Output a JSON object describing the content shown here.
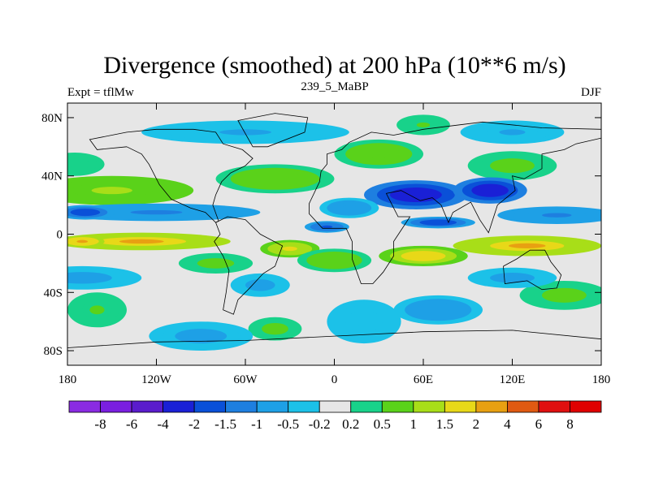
{
  "chart_data": {
    "type": "heatmap",
    "title": "Divergence (smoothed) at 200 hPa (10**6 m/s)",
    "left_label": "Expt = tflMw",
    "center_label": "239_5_MaBP",
    "right_label": "DJF",
    "xlim": [
      -180,
      180
    ],
    "ylim": [
      -90,
      90
    ],
    "x_ticks": [
      {
        "value": -180,
        "label": "180"
      },
      {
        "value": -120,
        "label": "120W"
      },
      {
        "value": -60,
        "label": "60W"
      },
      {
        "value": 0,
        "label": "0"
      },
      {
        "value": 60,
        "label": "60E"
      },
      {
        "value": 120,
        "label": "120E"
      },
      {
        "value": 180,
        "label": "180"
      }
    ],
    "y_ticks": [
      {
        "value": 80,
        "label": "80N"
      },
      {
        "value": 40,
        "label": "40N"
      },
      {
        "value": 0,
        "label": "0"
      },
      {
        "value": -40,
        "label": "40S"
      },
      {
        "value": -80,
        "label": "80S"
      }
    ],
    "levels": [
      "-8",
      "-6",
      "-4",
      "-2",
      "-1.5",
      "-1",
      "-0.5",
      "-0.2",
      "0.2",
      "0.5",
      "1",
      "1.5",
      "2",
      "4",
      "6",
      "8"
    ],
    "colors": [
      "#8a2be2",
      "#7a1fe0",
      "#5a1ccc",
      "#1a20d6",
      "#0a50d8",
      "#1e7fe0",
      "#1ea0e6",
      "#1cc1e8",
      "#e6e6e6",
      "#18d28a",
      "#5ad21a",
      "#a8de18",
      "#e8d818",
      "#e8a012",
      "#e05a12",
      "#e01010",
      "#e00000"
    ],
    "fields": [
      {
        "lon": -150,
        "lat": 30,
        "wlon": 55,
        "wlat": 10,
        "value": 1.3
      },
      {
        "lon": -40,
        "lat": 38,
        "wlon": 40,
        "wlat": 10,
        "value": 1.0
      },
      {
        "lon": 30,
        "lat": 55,
        "wlon": 30,
        "wlat": 10,
        "value": 0.9
      },
      {
        "lon": 60,
        "lat": 75,
        "wlon": 18,
        "wlat": 7,
        "value": 0.6
      },
      {
        "lon": -60,
        "lat": 70,
        "wlon": 70,
        "wlat": 8,
        "value": -0.6
      },
      {
        "lon": 120,
        "lat": 70,
        "wlon": 35,
        "wlat": 8,
        "value": -0.6
      },
      {
        "lon": 120,
        "lat": 47,
        "wlon": 30,
        "wlat": 10,
        "value": 0.7
      },
      {
        "lon": -175,
        "lat": 48,
        "wlon": 20,
        "wlat": 8,
        "value": 0.5
      },
      {
        "lon": -120,
        "lat": 15,
        "wlon": 70,
        "wlat": 6,
        "value": -1.2
      },
      {
        "lon": -168,
        "lat": 15,
        "wlon": 20,
        "wlat": 5,
        "value": -2.2
      },
      {
        "lon": 55,
        "lat": 27,
        "wlon": 35,
        "wlat": 10,
        "value": -3.0
      },
      {
        "lon": 105,
        "lat": 30,
        "wlon": 25,
        "wlat": 9,
        "value": -3.0
      },
      {
        "lon": 10,
        "lat": 18,
        "wlon": 20,
        "wlat": 7,
        "value": -1.1
      },
      {
        "lon": 70,
        "lat": 8,
        "wlon": 25,
        "wlat": 4,
        "value": -2.2
      },
      {
        "lon": -5,
        "lat": 5,
        "wlon": 15,
        "wlat": 4,
        "value": -1.8
      },
      {
        "lon": 150,
        "lat": 13,
        "wlon": 40,
        "wlat": 6,
        "value": -1.2
      },
      {
        "lon": -130,
        "lat": -5,
        "wlon": 60,
        "wlat": 6,
        "value": 2.4
      },
      {
        "lon": -170,
        "lat": -5,
        "wlon": 15,
        "wlat": 4,
        "value": 2.6
      },
      {
        "lon": 130,
        "lat": -8,
        "wlon": 50,
        "wlat": 7,
        "value": 2.5
      },
      {
        "lon": 60,
        "lat": -15,
        "wlon": 30,
        "wlat": 7,
        "value": 2.2
      },
      {
        "lon": -30,
        "lat": -10,
        "wlon": 20,
        "wlat": 6,
        "value": 1.9
      },
      {
        "lon": 0,
        "lat": -18,
        "wlon": 25,
        "wlat": 8,
        "value": 1.1
      },
      {
        "lon": -80,
        "lat": -20,
        "wlon": 25,
        "wlat": 7,
        "value": 0.8
      },
      {
        "lon": -40,
        "lat": -65,
        "wlon": 18,
        "wlat": 8,
        "value": 0.7
      },
      {
        "lon": 155,
        "lat": -42,
        "wlon": 30,
        "wlat": 10,
        "value": 0.8
      },
      {
        "lon": -160,
        "lat": -52,
        "wlon": 20,
        "wlat": 12,
        "value": 0.6
      },
      {
        "lon": 70,
        "lat": -52,
        "wlon": 30,
        "wlat": 10,
        "value": -0.9
      },
      {
        "lon": -170,
        "lat": -30,
        "wlon": 40,
        "wlat": 8,
        "value": -0.7
      },
      {
        "lon": -90,
        "lat": -70,
        "wlon": 35,
        "wlat": 10,
        "value": -0.7
      },
      {
        "lon": 20,
        "lat": -60,
        "wlon": 25,
        "wlat": 15,
        "value": -0.5
      },
      {
        "lon": 120,
        "lat": -30,
        "wlon": 30,
        "wlat": 7,
        "value": -0.8
      },
      {
        "lon": -50,
        "lat": -35,
        "wlon": 20,
        "wlat": 8,
        "value": -0.7
      }
    ]
  }
}
